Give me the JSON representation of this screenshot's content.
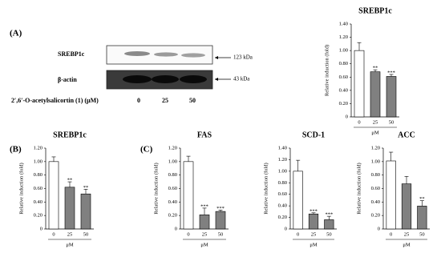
{
  "panel_labels": [
    "(A)",
    "(B)",
    "(C)"
  ],
  "blot": {
    "rows": [
      "SREBP1c",
      "β-actin"
    ],
    "sizes": [
      "123 kDa",
      "43 kDa"
    ],
    "treatment": "2′,6′-O-acetylsalicortin (1) (μM)",
    "doses": [
      "0",
      "25",
      "50"
    ]
  },
  "chart_data": [
    {
      "type": "bar",
      "title": "SREBP1c",
      "y_label": "Relative induction (fold)",
      "x_label": "μM",
      "categories": [
        "0",
        "25",
        "50"
      ],
      "values": [
        1.0,
        0.68,
        0.61
      ],
      "errors": [
        0.12,
        0.03,
        0.03
      ],
      "significance": [
        null,
        "**",
        "***"
      ],
      "colors": [
        "#ffffff",
        "#808080",
        "#808080"
      ],
      "ylim": [
        0,
        1.4
      ],
      "yticks": [
        0,
        {
          "value": 0.2,
          "label": "0.20"
        },
        {
          "value": 0.4,
          "label": "0.40"
        },
        {
          "value": 0.6,
          "label": "0.60"
        },
        {
          "value": 0.8,
          "label": "0.80"
        },
        {
          "value": 1.0,
          "label": "1.00"
        },
        {
          "value": 1.2,
          "label": "1.20"
        },
        {
          "value": 1.4,
          "label": "1.40"
        }
      ]
    },
    {
      "type": "bar",
      "title": "SREBP1c",
      "y_label": "Relative induction (fold)",
      "x_label": "μM",
      "categories": [
        "0",
        "25",
        "50"
      ],
      "values": [
        1.0,
        0.62,
        0.52
      ],
      "errors": [
        0.07,
        0.08,
        0.07
      ],
      "significance": [
        null,
        "**",
        "**"
      ],
      "colors": [
        "#ffffff",
        "#808080",
        "#808080"
      ],
      "ylim": [
        0,
        1.2
      ],
      "yticks": [
        0,
        {
          "value": 0.2,
          "label": "0.20"
        },
        {
          "value": 0.4,
          "label": "0.40"
        },
        {
          "value": 0.6,
          "label": "0.60"
        },
        {
          "value": 0.8,
          "label": "0.80"
        },
        {
          "value": 1.0,
          "label": "1.00"
        },
        {
          "value": 1.2,
          "label": "1.20"
        }
      ]
    },
    {
      "type": "bar",
      "title": "FAS",
      "y_label": "Relative induction (fold)",
      "x_label": "μM",
      "categories": [
        "0",
        "25",
        "50"
      ],
      "values": [
        1.0,
        0.21,
        0.26
      ],
      "errors": [
        0.08,
        0.1,
        0.02
      ],
      "significance": [
        null,
        "***",
        "***"
      ],
      "colors": [
        "#ffffff",
        "#808080",
        "#808080"
      ],
      "ylim": [
        0,
        1.2
      ],
      "yticks": [
        0,
        {
          "value": 0.2,
          "label": "0.20"
        },
        {
          "value": 0.4,
          "label": "0.40"
        },
        {
          "value": 0.6,
          "label": "0.60"
        },
        {
          "value": 0.8,
          "label": "0.80"
        },
        {
          "value": 1.0,
          "label": "1.00"
        },
        {
          "value": 1.2,
          "label": "1.20"
        }
      ]
    },
    {
      "type": "bar",
      "title": "SCD-1",
      "y_label": "Relative induction (fold)",
      "x_label": "μM",
      "categories": [
        "0",
        "25",
        "50"
      ],
      "values": [
        1.0,
        0.26,
        0.16
      ],
      "errors": [
        0.19,
        0.02,
        0.06
      ],
      "significance": [
        null,
        "***",
        "***"
      ],
      "colors": [
        "#ffffff",
        "#808080",
        "#808080"
      ],
      "ylim": [
        0,
        1.4
      ],
      "yticks": [
        0,
        {
          "value": 0.2,
          "label": "0.20"
        },
        {
          "value": 0.4,
          "label": "0.40"
        },
        {
          "value": 0.6,
          "label": "0.60"
        },
        {
          "value": 0.8,
          "label": "0.80"
        },
        {
          "value": 1.0,
          "label": "1.00"
        },
        {
          "value": 1.2,
          "label": "1.20"
        },
        {
          "value": 1.4,
          "label": "1.40"
        }
      ]
    },
    {
      "type": "bar",
      "title": "ACC",
      "y_label": "Relative induction (fold)",
      "x_label": "μM",
      "categories": [
        "0",
        "25",
        "50"
      ],
      "values": [
        1.01,
        0.67,
        0.34
      ],
      "errors": [
        0.13,
        0.11,
        0.08
      ],
      "significance": [
        null,
        null,
        "**"
      ],
      "colors": [
        "#ffffff",
        "#808080",
        "#808080"
      ],
      "ylim": [
        0,
        1.2
      ],
      "yticks": [
        0,
        {
          "value": 0.2,
          "label": "0.20"
        },
        {
          "value": 0.4,
          "label": "0.40"
        },
        {
          "value": 0.6,
          "label": "0.60"
        },
        {
          "value": 0.8,
          "label": "0.80"
        },
        {
          "value": 1.0,
          "label": "1.00"
        },
        {
          "value": 1.2,
          "label": "1.20"
        }
      ]
    }
  ]
}
